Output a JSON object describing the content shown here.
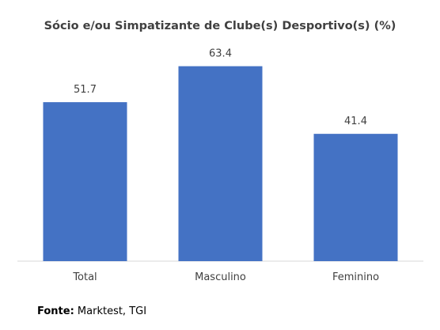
{
  "chart_data": {
    "type": "bar",
    "title": "Sócio e/ou Simpatizante de Clube(s) Desportivo(s) (%)",
    "categories": [
      "Total",
      "Masculino",
      "Feminino"
    ],
    "values": [
      51.7,
      63.4,
      41.4
    ],
    "data_labels": [
      "51.7",
      "63.4",
      "41.4"
    ],
    "ylim": [
      0,
      70
    ],
    "grid": false,
    "legend": "none",
    "bar_color": "#4472C4",
    "baseline_color": "#D9D9D9"
  },
  "source": {
    "label": "Fonte:",
    "text": " Marktest, TGI"
  }
}
